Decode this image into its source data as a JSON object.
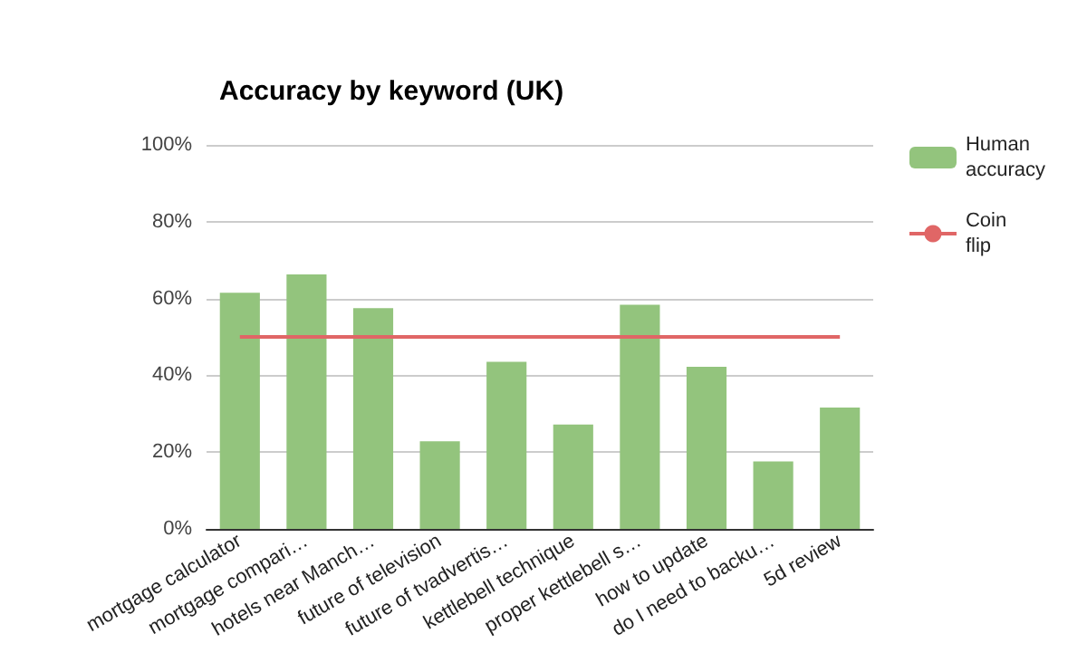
{
  "chart_data": {
    "type": "bar",
    "title": "Accuracy by keyword (UK)",
    "categories": [
      "mortgage calculator",
      "mortgage compari…",
      "hotels near Manch…",
      "future of television",
      "future of tvadvertis…",
      "kettlebell technique",
      "proper kettlebell s…",
      "how to update",
      "do I need to backu…",
      "5d review"
    ],
    "series": [
      {
        "name": "Human accuracy",
        "color": "#93c47d",
        "values": [
          61.5,
          66.3,
          57.5,
          22.8,
          43.5,
          27.2,
          58.4,
          42.2,
          17.6,
          31.6
        ]
      },
      {
        "name": "Coin flip",
        "type": "line",
        "color": "#e06666",
        "values": [
          50,
          50,
          50,
          50,
          50,
          50,
          50,
          50,
          50,
          50
        ]
      }
    ],
    "ylim": [
      0,
      100
    ],
    "yticks": [
      {
        "value": 0,
        "label": "0%"
      },
      {
        "value": 20,
        "label": "20%"
      },
      {
        "value": 40,
        "label": "40%"
      },
      {
        "value": 60,
        "label": "60%"
      },
      {
        "value": 80,
        "label": "80%"
      },
      {
        "value": 100,
        "label": "100%"
      }
    ],
    "grid": "y",
    "legend": "top right",
    "marker": "none"
  }
}
